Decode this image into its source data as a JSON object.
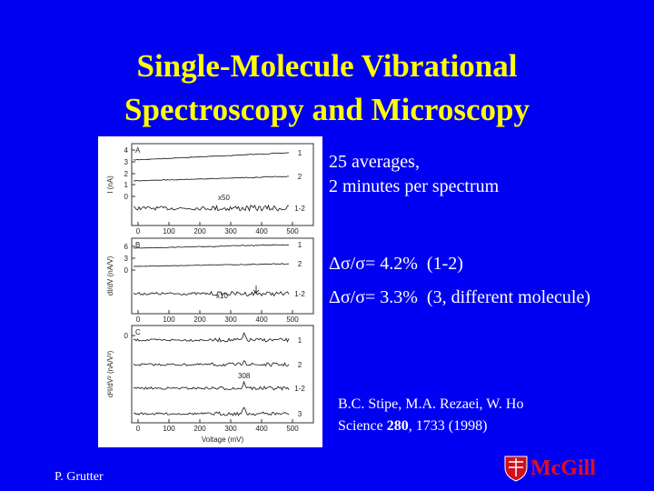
{
  "title": [
    "Single-Molecule Vibrational",
    "Spectroscopy and Microscopy"
  ],
  "notes": [
    "25 averages,",
    "2 minutes per spectrum"
  ],
  "results": [
    "Δσ/σ= 4.2%  (1-2)",
    "Δσ/σ= 3.3%  (3, different molecule)"
  ],
  "citation": {
    "authors": "B.C. Stipe, M.A. Rezaei, W. Ho",
    "journal": "Science ",
    "volume": "280",
    "rest": ", 1733 (1998)"
  },
  "footer": {
    "author": "P. Grutter",
    "logo": "McGill"
  },
  "figure": {
    "xticks": [
      "0",
      "100",
      "200",
      "300",
      "400",
      "500"
    ],
    "xlabel": "Voltage (mV)",
    "panels": [
      {
        "label": "A",
        "ylabel": "I (nA)",
        "yticks": [
          "4",
          "3",
          "2",
          "1",
          "0"
        ],
        "curves": [
          "1",
          "2",
          "1-2"
        ],
        "annotation": "x50"
      },
      {
        "label": "B",
        "ylabel": "dI/dV (nA/V)",
        "yticks": [
          "6",
          "3",
          "0"
        ],
        "curves": [
          "1",
          "2",
          "1-2"
        ],
        "annotation": "x10"
      },
      {
        "label": "C",
        "ylabel": "d²I/dV² (nA/V²)",
        "yticks": [
          "0"
        ],
        "curves": [
          "1",
          "2",
          "1-2",
          "3"
        ],
        "annotation": "308"
      }
    ]
  }
}
